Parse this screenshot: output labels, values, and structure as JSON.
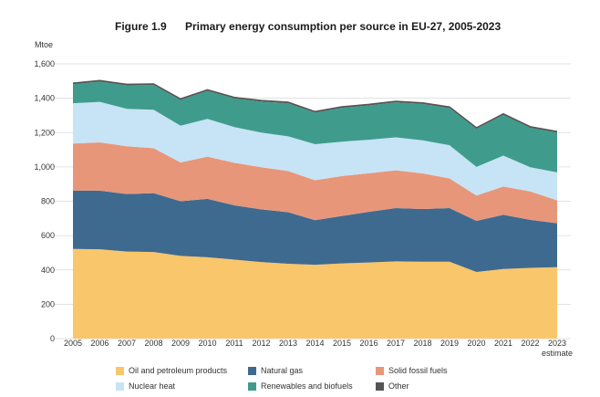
{
  "figure_label": "Figure 1.9",
  "chart_data": {
    "type": "area",
    "stacked": true,
    "title": "Primary energy consumption per source in EU-27, 2005-2023",
    "ylabel": "Mtoe",
    "xlabel": "",
    "ylim": [
      0,
      1600
    ],
    "yticks": [
      0,
      200,
      400,
      600,
      800,
      1000,
      1200,
      1400,
      1600
    ],
    "ytick_labels": [
      "0",
      "200",
      "400",
      "600",
      "800",
      "1,000",
      "1,200",
      "1,400",
      "1,600"
    ],
    "x": [
      "2005",
      "2006",
      "2007",
      "2008",
      "2009",
      "2010",
      "2011",
      "2012",
      "2013",
      "2014",
      "2015",
      "2016",
      "2017",
      "2018",
      "2019",
      "2020",
      "2021",
      "2022",
      "2023"
    ],
    "x_note": "estimate",
    "grid": true,
    "legend_position": "bottom",
    "series": [
      {
        "name": "Oil and petroleum products",
        "color": "#f9c66b",
        "values": [
          522,
          520,
          507,
          504,
          482,
          474,
          460,
          446,
          436,
          430,
          438,
          443,
          450,
          448,
          448,
          388,
          405,
          412,
          416
        ]
      },
      {
        "name": "Natural gas",
        "color": "#3f6a8f",
        "values": [
          340,
          342,
          335,
          343,
          318,
          340,
          316,
          307,
          300,
          260,
          276,
          295,
          310,
          307,
          312,
          298,
          316,
          280,
          256
        ]
      },
      {
        "name": "Solid fossil fuels",
        "color": "#e8967a",
        "values": [
          274,
          281,
          278,
          262,
          226,
          246,
          248,
          245,
          240,
          232,
          233,
          225,
          220,
          207,
          173,
          147,
          165,
          165,
          133
        ]
      },
      {
        "name": "Nuclear heat",
        "color": "#c6e4f5",
        "values": [
          235,
          236,
          218,
          224,
          214,
          220,
          208,
          202,
          202,
          210,
          200,
          195,
          192,
          193,
          193,
          167,
          180,
          141,
          163
        ]
      },
      {
        "name": "Renewables and biofuels",
        "color": "#3f9c8c",
        "values": [
          111,
          118,
          137,
          144,
          150,
          163,
          167,
          181,
          193,
          184,
          197,
          200,
          204,
          212,
          217,
          222,
          237,
          230,
          232
        ]
      },
      {
        "name": "Other",
        "color": "#555555",
        "values": [
          6,
          6,
          6,
          6,
          6,
          6,
          6,
          6,
          6,
          6,
          6,
          6,
          6,
          6,
          6,
          6,
          6,
          6,
          6
        ]
      }
    ]
  }
}
